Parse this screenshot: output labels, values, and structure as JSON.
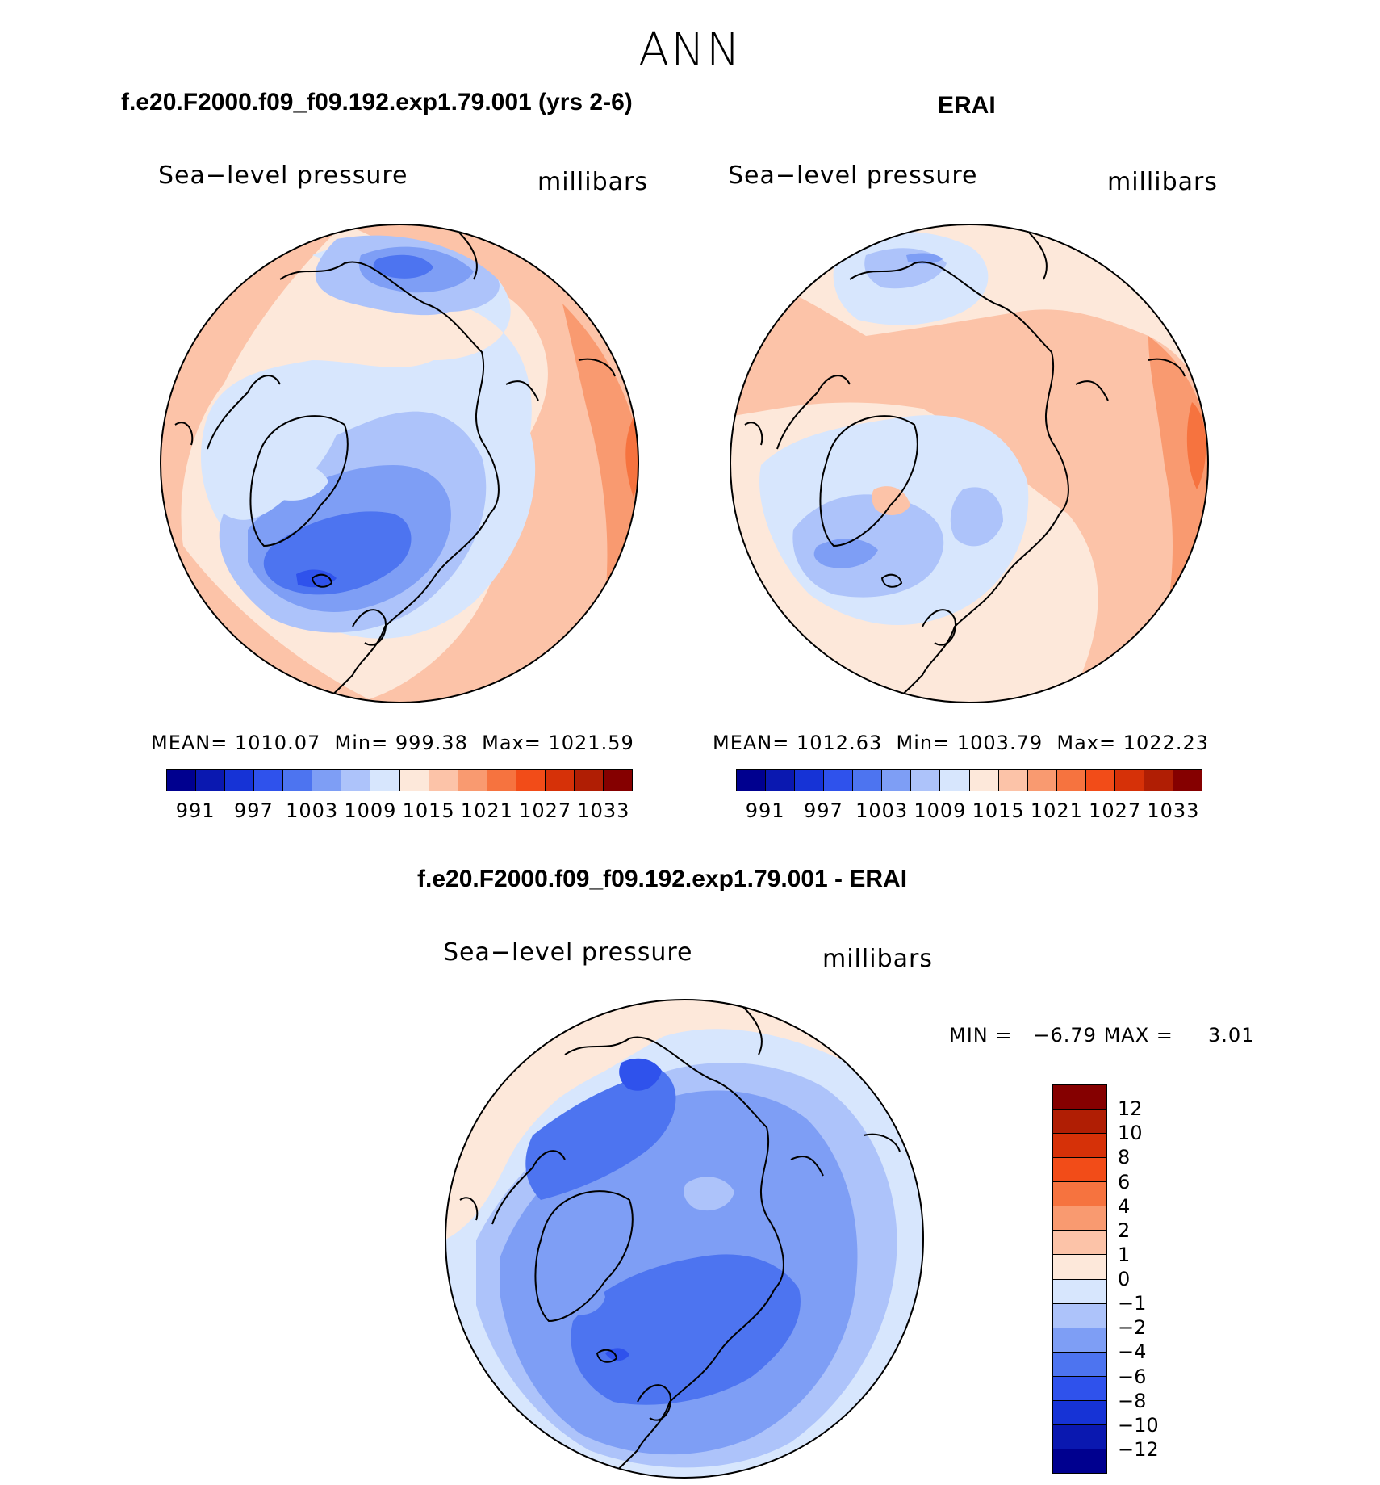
{
  "figure": {
    "season": "ANN",
    "variable": "Sea−level pressure",
    "units": "millibars"
  },
  "panels": [
    {
      "id": "model",
      "title": "f.e20.F2000.f09_f09.192.exp1.79.001 (yrs 2-6)",
      "mean_label": "MEAN=",
      "mean": "1010.07",
      "min_label": "Min=",
      "min": "999.38",
      "max_label": "Max=",
      "max": "1021.59"
    },
    {
      "id": "obs",
      "title": "ERAI",
      "mean_label": "MEAN=",
      "mean": "1012.63",
      "min_label": "Min=",
      "min": "1003.79",
      "max_label": "Max=",
      "max": "1022.23"
    },
    {
      "id": "diff",
      "title": "f.e20.F2000.f09_f09.192.exp1.79.001 - ERAI",
      "min_label": "MIN =",
      "min": "−6.79",
      "max_label": "MAX =",
      "max": "3.01"
    }
  ],
  "chart_data": {
    "type": "heatmap",
    "projection": "north polar stereographic",
    "abs_colorbar": {
      "tick_labels": [
        "991",
        "997",
        "1003",
        "1009",
        "1015",
        "1021",
        "1027",
        "1033"
      ],
      "colors": [
        "#00008f",
        "#0a18b0",
        "#1633d6",
        "#2f52ec",
        "#4d74f0",
        "#7e9ef5",
        "#adc3fa",
        "#d7e6fd",
        "#fde8da",
        "#fcc3a8",
        "#f99a70",
        "#f6733f",
        "#f24c18",
        "#d63108",
        "#b01e04",
        "#850000"
      ]
    },
    "diff_colorbar": {
      "tick_labels": [
        "12",
        "10",
        "8",
        "6",
        "4",
        "2",
        "1",
        "0",
        "−1",
        "−2",
        "−4",
        "−6",
        "−8",
        "−10",
        "−12"
      ],
      "colors": [
        "#850000",
        "#b01e04",
        "#d63108",
        "#f24c18",
        "#f6733f",
        "#f99a70",
        "#fcc3a8",
        "#fde8da",
        "#d7e6fd",
        "#adc3fa",
        "#7e9ef5",
        "#4d74f0",
        "#2f52ec",
        "#1633d6",
        "#0a18b0",
        "#00008f"
      ]
    }
  }
}
